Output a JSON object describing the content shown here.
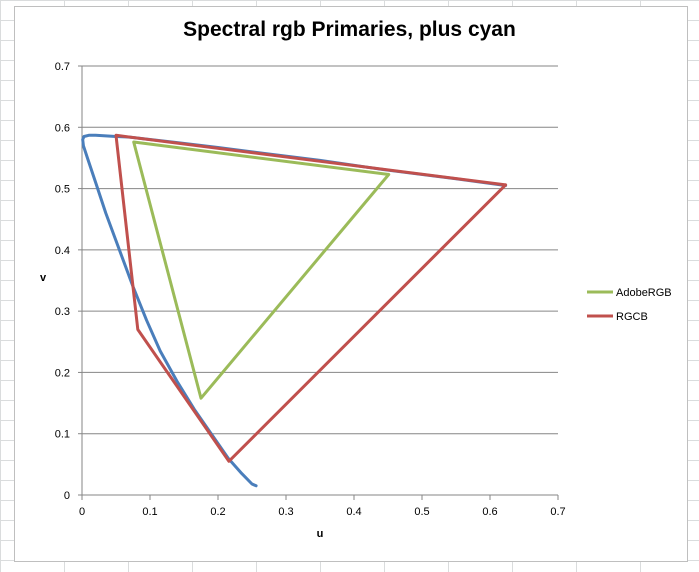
{
  "chart_data": {
    "type": "scatter",
    "title": "Spectral rgb Primaries, plus cyan",
    "xlabel": "u",
    "ylabel": "v",
    "xlim": [
      0,
      0.7
    ],
    "ylim": [
      0,
      0.7
    ],
    "x_ticks": [
      "0",
      "0.1",
      "0.2",
      "0.3",
      "0.4",
      "0.5",
      "0.6",
      "0.7"
    ],
    "y_ticks": [
      "0",
      "0.1",
      "0.2",
      "0.3",
      "0.4",
      "0.5",
      "0.6",
      "0.7"
    ],
    "grid": "horizontal",
    "legend_position": "right",
    "series": [
      {
        "id": "locus",
        "color": "#4a7ebb",
        "x": [
          0.256,
          0.25,
          0.235,
          0.215,
          0.19,
          0.165,
          0.14,
          0.115,
          0.095,
          0.075,
          0.055,
          0.035,
          0.02,
          0.008,
          0.002,
          0.001,
          0.003,
          0.01,
          0.02,
          0.035,
          0.05,
          0.07,
          0.1,
          0.14,
          0.2,
          0.27,
          0.35,
          0.45,
          0.55,
          0.623
        ],
        "y": [
          0.015,
          0.018,
          0.035,
          0.06,
          0.1,
          0.14,
          0.185,
          0.235,
          0.285,
          0.34,
          0.4,
          0.46,
          0.51,
          0.55,
          0.57,
          0.58,
          0.585,
          0.587,
          0.587,
          0.586,
          0.585,
          0.584,
          0.58,
          0.575,
          0.567,
          0.557,
          0.546,
          0.53,
          0.516,
          0.505
        ]
      },
      {
        "name": "AdobeRGB",
        "color": "#9bbb59",
        "x": [
          0.451,
          0.076,
          0.175,
          0.451
        ],
        "y": [
          0.523,
          0.576,
          0.158,
          0.523
        ]
      },
      {
        "name": "RGCB",
        "color": "#c0504d",
        "x": [
          0.623,
          0.05,
          0.082,
          0.216,
          0.623
        ],
        "y": [
          0.506,
          0.587,
          0.27,
          0.055,
          0.506
        ]
      }
    ]
  }
}
